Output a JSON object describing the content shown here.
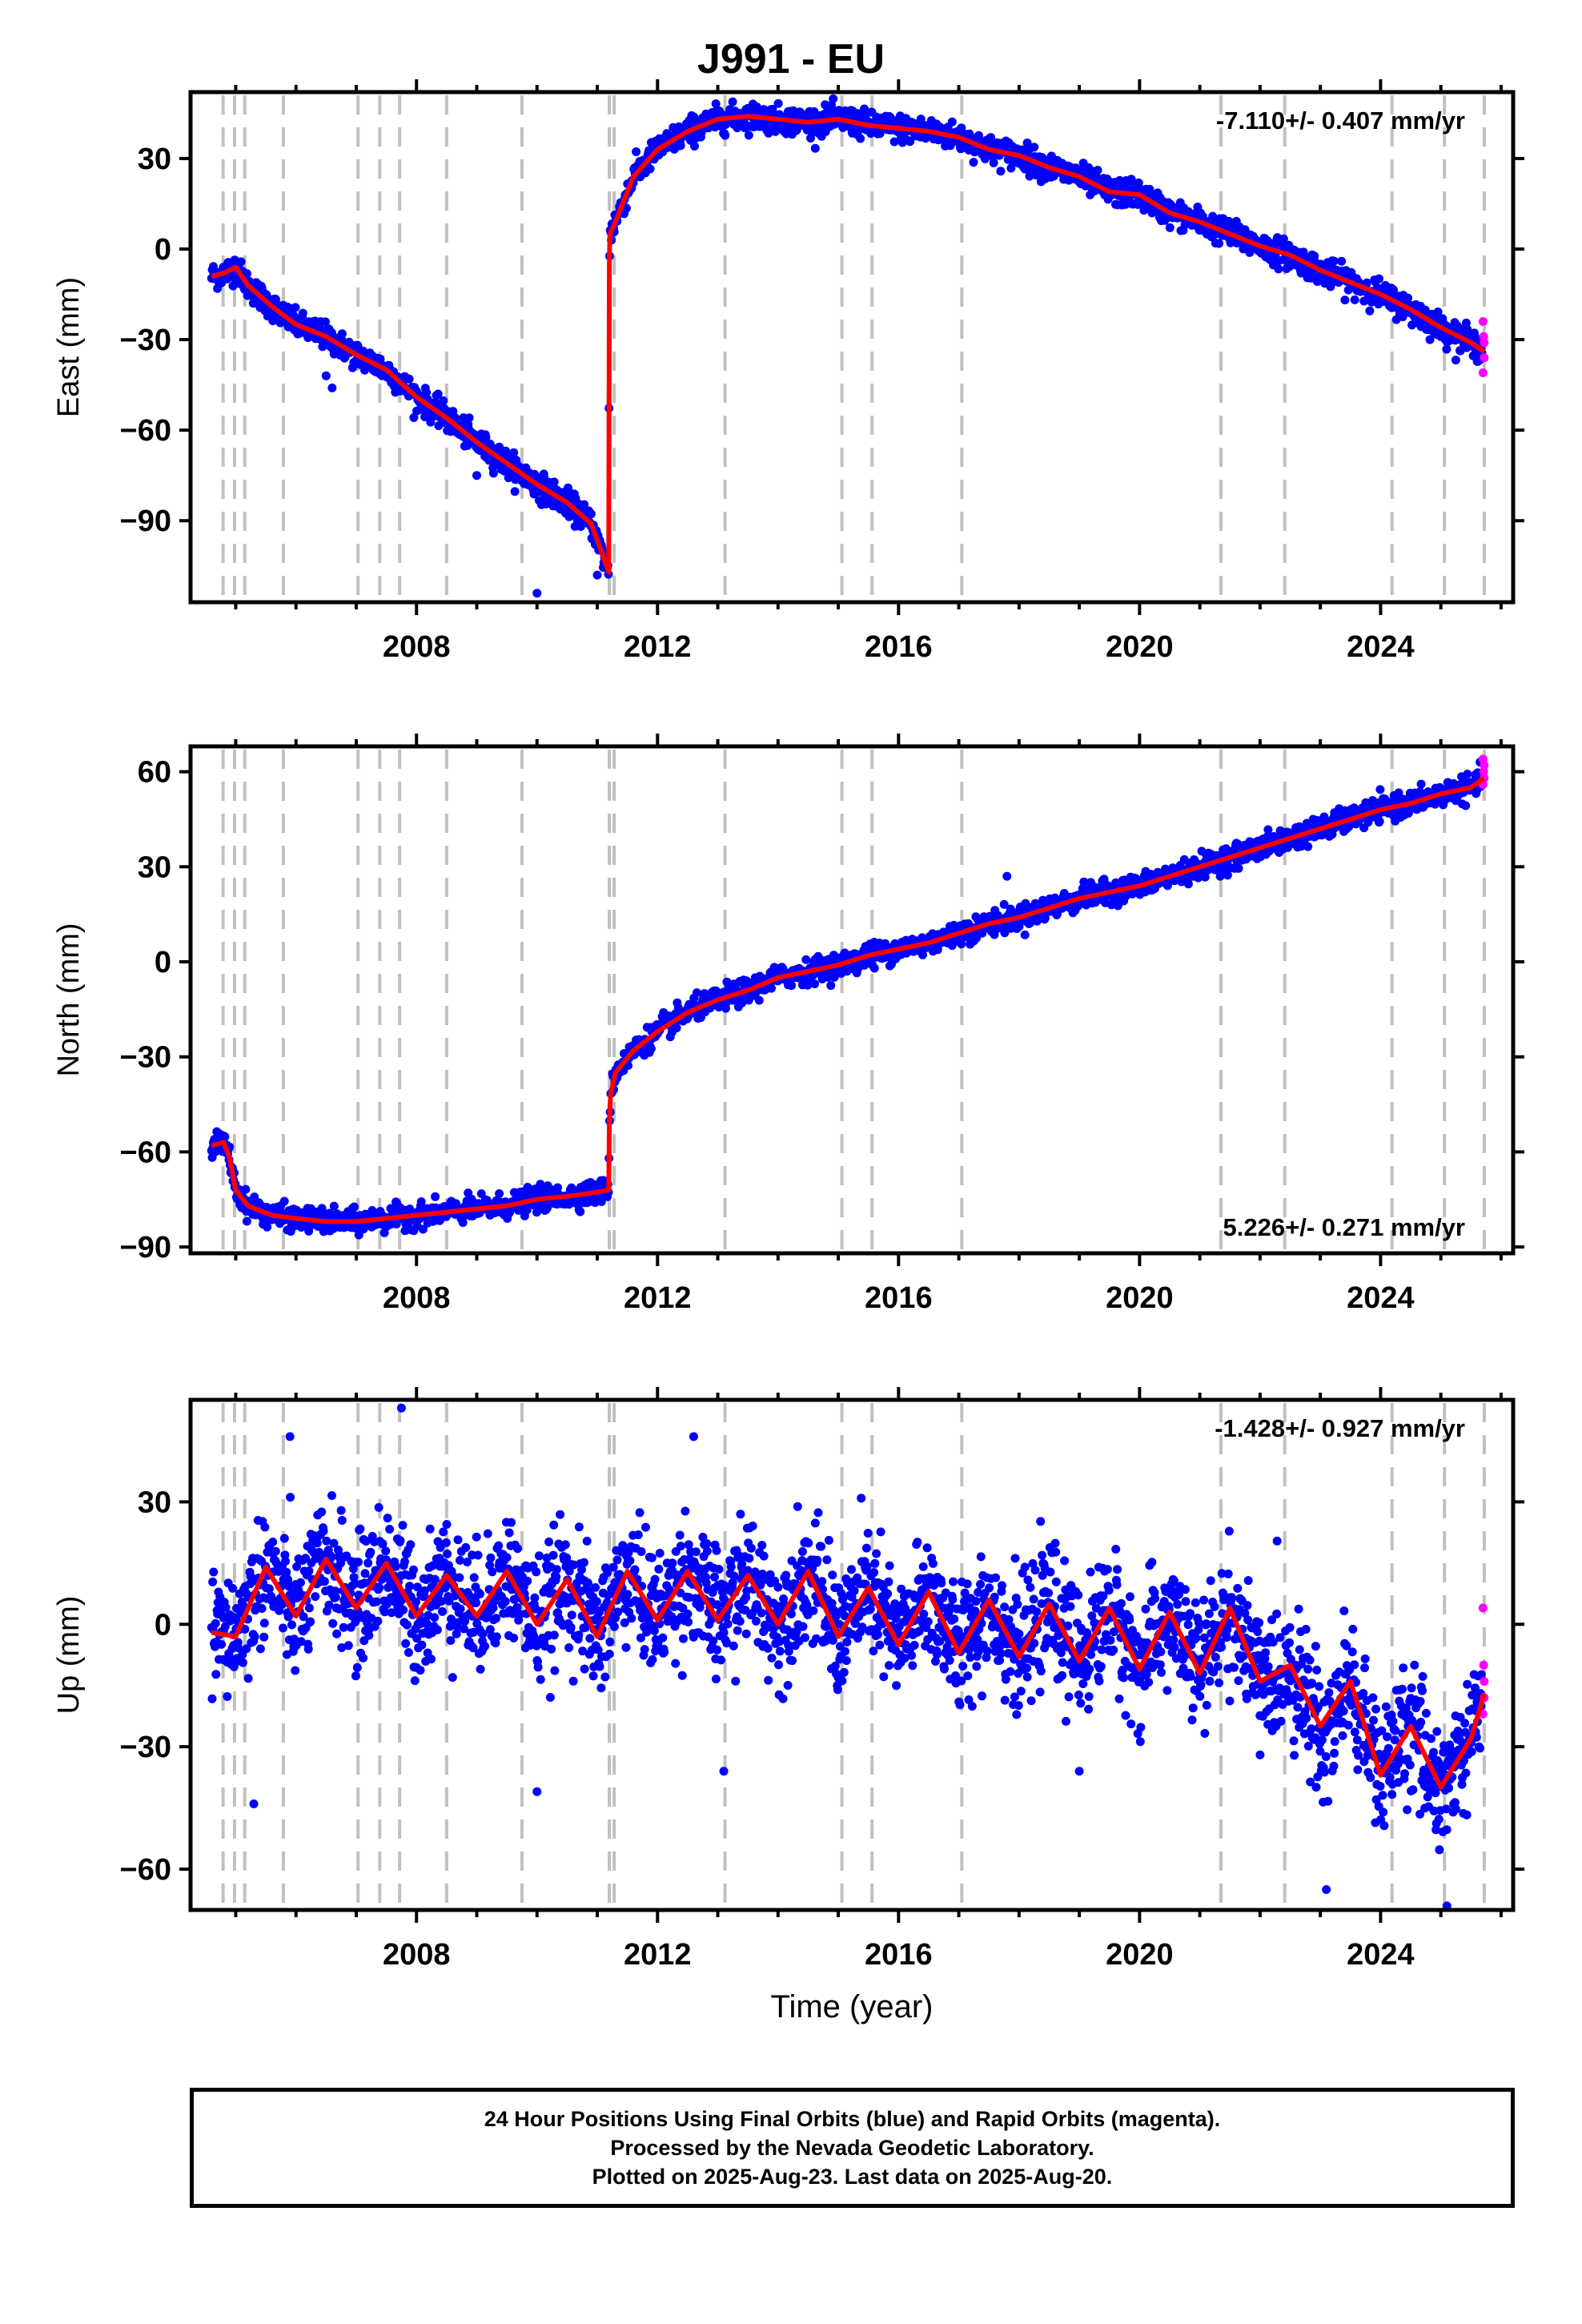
{
  "title": "J991 - EU",
  "footer": {
    "line1": "24 Hour Positions Using Final Orbits (blue) and Rapid Orbits (magenta).",
    "line2": "Processed by the Nevada Geodetic Laboratory.",
    "line3": "Plotted on 2025-Aug-23. Last data on 2025-Aug-20."
  },
  "colors": {
    "final": "#0000ff",
    "rapid": "#ff00ff",
    "model": "#ff0000",
    "events": "#c0c0c0"
  },
  "event_dates": [
    2004.79,
    2004.98,
    2005.15,
    2005.79,
    2007.03,
    2007.39,
    2007.72,
    2008.5,
    2009.75,
    2011.2,
    2011.28,
    2013.12,
    2015.06,
    2015.56,
    2017.05,
    2021.35,
    2022.41,
    2024.19,
    2025.06,
    2025.72
  ],
  "chart_data": [
    {
      "type": "scatter",
      "panel": "east",
      "ylabel": "East (mm)",
      "xlabel": "",
      "xlim": [
        2004.25,
        2026.2
      ],
      "ylim": [
        -117,
        52
      ],
      "xticks": [
        2008,
        2012,
        2016,
        2020,
        2024
      ],
      "yticks": [
        -90,
        -60,
        -30,
        0,
        30
      ],
      "rate_label": "-7.110+/- 0.407 mm/yr",
      "legend_position": "top-right",
      "model_curve": {
        "x": [
          2004.6,
          2004.8,
          2005.0,
          2005.2,
          2005.6,
          2006.0,
          2006.5,
          2007.0,
          2007.5,
          2008.0,
          2008.5,
          2009.0,
          2009.5,
          2010.0,
          2010.5,
          2010.9,
          2011.19,
          2011.2,
          2011.21,
          2011.3,
          2011.6,
          2012.0,
          2012.5,
          2013.0,
          2013.5,
          2014.0,
          2014.5,
          2015.0,
          2015.5,
          2016.0,
          2016.5,
          2017.0,
          2017.5,
          2018.0,
          2018.5,
          2019.0,
          2019.5,
          2020.0,
          2020.5,
          2021.0,
          2021.5,
          2022.0,
          2022.5,
          2023.0,
          2023.5,
          2024.0,
          2024.5,
          2025.0,
          2025.5,
          2025.72
        ],
        "y": [
          -9,
          -8,
          -6,
          -12,
          -19,
          -25,
          -29,
          -35,
          -40,
          -49,
          -56,
          -64,
          -71,
          -78,
          -84,
          -91,
          -107,
          -5,
          5,
          9,
          24,
          33,
          39,
          43,
          44,
          43,
          42,
          43,
          41,
          40,
          39,
          37,
          33,
          31,
          27,
          24,
          19,
          18,
          12,
          9,
          5,
          1,
          -2,
          -7,
          -11,
          -15,
          -20,
          -26,
          -31,
          -34
        ]
      },
      "outliers": [
        [
          2010.0,
          -114
        ],
        [
          2009.0,
          -75
        ],
        [
          2006.5,
          -42
        ],
        [
          2006.6,
          -46
        ],
        [
          2011.0,
          -108
        ]
      ],
      "rapid_points": [
        [
          2025.7,
          -24
        ],
        [
          2025.7,
          -41
        ],
        [
          2025.71,
          -29
        ],
        [
          2025.72,
          -31
        ],
        [
          2025.72,
          -36
        ]
      ],
      "scatter_sigma": 2.2
    },
    {
      "type": "scatter",
      "panel": "north",
      "ylabel": "North (mm)",
      "xlabel": "",
      "xlim": [
        2004.25,
        2026.2
      ],
      "ylim": [
        -92,
        68
      ],
      "xticks": [
        2008,
        2012,
        2016,
        2020,
        2024
      ],
      "yticks": [
        -90,
        -60,
        -30,
        0,
        30,
        60
      ],
      "rate_label": "5.226+/- 0.271 mm/yr",
      "legend_position": "bottom-right",
      "model_curve": {
        "x": [
          2004.6,
          2004.8,
          2004.9,
          2005.0,
          2005.2,
          2005.6,
          2006.0,
          2006.5,
          2007.0,
          2007.5,
          2008.0,
          2008.5,
          2009.0,
          2009.5,
          2010.0,
          2010.5,
          2010.9,
          2011.19,
          2011.2,
          2011.22,
          2011.3,
          2011.6,
          2012.0,
          2012.5,
          2013.0,
          2013.5,
          2014.0,
          2014.5,
          2015.0,
          2015.5,
          2016.0,
          2016.5,
          2017.0,
          2017.5,
          2018.0,
          2018.5,
          2019.0,
          2019.5,
          2020.0,
          2020.5,
          2021.0,
          2021.5,
          2022.0,
          2022.5,
          2023.0,
          2023.5,
          2024.0,
          2024.5,
          2025.0,
          2025.5,
          2025.72
        ],
        "y": [
          -58,
          -57,
          -62,
          -72,
          -77,
          -80,
          -81,
          -82,
          -82,
          -81,
          -80,
          -79,
          -78,
          -77,
          -75,
          -74,
          -73,
          -72,
          -51,
          -42,
          -35,
          -28,
          -22,
          -16,
          -12,
          -9,
          -5,
          -3,
          -1,
          2,
          4,
          6,
          9,
          12,
          14,
          17,
          20,
          22,
          24,
          27,
          30,
          33,
          36,
          39,
          42,
          45,
          48,
          50,
          53,
          55,
          58
        ]
      },
      "outliers": [
        [
          2015.6,
          -2
        ],
        [
          2017.8,
          27
        ],
        [
          2016.3,
          4
        ],
        [
          2012.1,
          -16
        ]
      ],
      "rapid_points": [
        [
          2025.7,
          64
        ],
        [
          2025.7,
          56
        ],
        [
          2025.71,
          60
        ],
        [
          2025.72,
          62
        ],
        [
          2025.72,
          58
        ]
      ],
      "scatter_sigma": 1.8
    },
    {
      "type": "scatter",
      "panel": "up",
      "ylabel": "Up (mm)",
      "xlabel": "Time (year)",
      "xlim": [
        2004.25,
        2026.2
      ],
      "ylim": [
        -70,
        55
      ],
      "xticks": [
        2008,
        2012,
        2016,
        2020,
        2024
      ],
      "yticks": [
        -60,
        -30,
        0,
        30
      ],
      "rate_label": "-1.428+/- 0.927 mm/yr",
      "legend_position": "top-right",
      "model_curve": {
        "x": [
          2004.6,
          2005.0,
          2005.5,
          2006.0,
          2006.5,
          2007.0,
          2007.5,
          2008.0,
          2008.5,
          2009.0,
          2009.5,
          2010.0,
          2010.5,
          2011.0,
          2011.5,
          2012.0,
          2012.5,
          2013.0,
          2013.5,
          2014.0,
          2014.5,
          2015.0,
          2015.5,
          2016.0,
          2016.5,
          2017.0,
          2017.5,
          2018.0,
          2018.5,
          2019.0,
          2019.5,
          2020.0,
          2020.5,
          2021.0,
          2021.5,
          2022.0,
          2022.5,
          2023.0,
          2023.5,
          2024.0,
          2024.5,
          2025.0,
          2025.5,
          2025.72
        ],
        "y": [
          -2,
          -3,
          14,
          2,
          16,
          4,
          15,
          2,
          12,
          2,
          13,
          0,
          11,
          -3,
          13,
          1,
          13,
          1,
          12,
          0,
          13,
          -3,
          9,
          -5,
          8,
          -7,
          6,
          -8,
          5,
          -9,
          4,
          -11,
          3,
          -12,
          4,
          -14,
          -10,
          -25,
          -14,
          -37,
          -25,
          -40,
          -28,
          -17
        ]
      },
      "outliers": [
        [
          2005.9,
          46
        ],
        [
          2007.75,
          53
        ],
        [
          2012.6,
          46
        ],
        [
          2010.0,
          -41
        ],
        [
          2005.3,
          -44
        ],
        [
          2013.1,
          -36
        ],
        [
          2019.0,
          -36
        ],
        [
          2022.0,
          -32
        ],
        [
          2023.1,
          -65
        ],
        [
          2025.1,
          -69
        ]
      ],
      "rapid_points": [
        [
          2025.7,
          4
        ],
        [
          2025.7,
          -22
        ],
        [
          2025.71,
          -10
        ],
        [
          2025.72,
          -14
        ],
        [
          2025.72,
          -18
        ]
      ],
      "scatter_sigma": 7.5
    }
  ]
}
